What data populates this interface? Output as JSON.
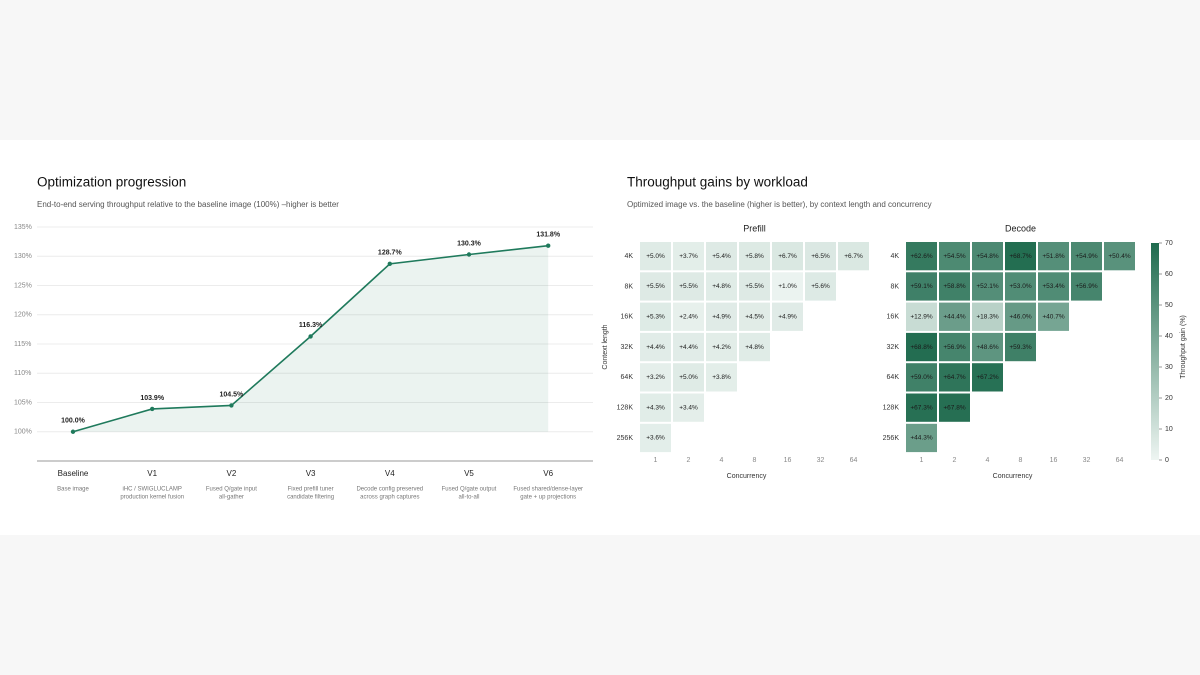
{
  "chart_data": [
    {
      "type": "line",
      "title": "Optimization progression",
      "subtitle": "End-to-end serving throughput relative to the baseline image (100%) –higher is better",
      "categories": [
        "Baseline",
        "V1",
        "V2",
        "V3",
        "V4",
        "V5",
        "V6"
      ],
      "descriptions": [
        [
          "Base image"
        ],
        [
          "iHC / SWIGLUCLAMP",
          "production kernel fusion"
        ],
        [
          "Fused Q/gate input",
          "all-gather"
        ],
        [
          "Fixed prefill tuner",
          "candidate filtering"
        ],
        [
          "Decode config preserved",
          "across graph captures"
        ],
        [
          "Fused Q/gate output",
          "all-to-all"
        ],
        [
          "Fused shared/dense-layer",
          "gate + up projections"
        ]
      ],
      "values": [
        100.0,
        103.9,
        104.5,
        116.3,
        128.7,
        130.3,
        131.8
      ],
      "value_labels": [
        "100.0%",
        "103.9%",
        "104.5%",
        "116.3%",
        "128.7%",
        "130.3%",
        "131.8%"
      ],
      "color": "#1f7a5c",
      "ylim": [
        95,
        135
      ],
      "yticks": [
        {
          "value": 100,
          "label": "100%"
        },
        {
          "value": 105,
          "label": "105%"
        },
        {
          "value": 110,
          "label": "110%"
        },
        {
          "value": 115,
          "label": "115%"
        },
        {
          "value": 120,
          "label": "120%"
        },
        {
          "value": 125,
          "label": "125%"
        },
        {
          "value": 130,
          "label": "130%"
        },
        {
          "value": 135,
          "label": "135%"
        }
      ],
      "grid": true
    },
    {
      "type": "heatmap",
      "title": "Throughput gains by workload",
      "subtitle": "Optimized image vs. the baseline (higher is better), by context length and concurrency",
      "x": [
        "1",
        "2",
        "4",
        "8",
        "16",
        "32",
        "64"
      ],
      "y": [
        "4K",
        "8K",
        "16K",
        "32K",
        "64K",
        "128K",
        "256K"
      ],
      "xlabel": "Concurrency",
      "ylabel": "Context length",
      "cmap": [
        "#eef5f2",
        "#1f6b4e"
      ],
      "colorbar": {
        "label": "Throughput gain (%)",
        "lim": [
          0,
          70
        ],
        "ticks": [
          0,
          10,
          20,
          30,
          40,
          50,
          60,
          70
        ]
      },
      "panels": [
        {
          "title": "Prefill",
          "values": [
            [
              5.0,
              3.7,
              5.4,
              5.8,
              6.7,
              6.5,
              6.7
            ],
            [
              5.5,
              5.5,
              4.8,
              5.5,
              1.0,
              5.6,
              null
            ],
            [
              5.3,
              2.4,
              4.9,
              4.5,
              4.9,
              null,
              null
            ],
            [
              4.4,
              4.4,
              4.2,
              4.8,
              null,
              null,
              null
            ],
            [
              3.2,
              5.0,
              3.8,
              null,
              null,
              null,
              null
            ],
            [
              4.3,
              3.4,
              null,
              null,
              null,
              null,
              null
            ],
            [
              3.6,
              null,
              null,
              null,
              null,
              null,
              null
            ]
          ],
          "value_labels": [
            [
              "+5.0%",
              "+3.7%",
              "+5.4%",
              "+5.8%",
              "+6.7%",
              "+6.5%",
              "+6.7%"
            ],
            [
              "+5.5%",
              "+5.5%",
              "+4.8%",
              "+5.5%",
              "+1.0%",
              "+5.6%",
              null
            ],
            [
              "+5.3%",
              "+2.4%",
              "+4.9%",
              "+4.5%",
              "+4.9%",
              null,
              null
            ],
            [
              "+4.4%",
              "+4.4%",
              "+4.2%",
              "+4.8%",
              null,
              null,
              null
            ],
            [
              "+3.2%",
              "+5.0%",
              "+3.8%",
              null,
              null,
              null,
              null
            ],
            [
              "+4.3%",
              "+3.4%",
              null,
              null,
              null,
              null,
              null
            ],
            [
              "+3.6%",
              null,
              null,
              null,
              null,
              null,
              null
            ]
          ]
        },
        {
          "title": "Decode",
          "values": [
            [
              62.6,
              54.5,
              54.8,
              68.7,
              51.8,
              54.9,
              50.4
            ],
            [
              59.1,
              58.8,
              52.1,
              53.0,
              53.4,
              56.9,
              null
            ],
            [
              12.9,
              44.4,
              18.3,
              46.0,
              40.7,
              null,
              null
            ],
            [
              68.8,
              56.9,
              48.6,
              59.3,
              null,
              null,
              null
            ],
            [
              59.0,
              64.7,
              67.2,
              null,
              null,
              null,
              null
            ],
            [
              67.3,
              67.8,
              null,
              null,
              null,
              null,
              null
            ],
            [
              44.3,
              null,
              null,
              null,
              null,
              null,
              null
            ]
          ],
          "value_labels": [
            [
              "+62.6%",
              "+54.5%",
              "+54.8%",
              "+68.7%",
              "+51.8%",
              "+54.9%",
              "+50.4%"
            ],
            [
              "+59.1%",
              "+58.8%",
              "+52.1%",
              "+53.0%",
              "+53.4%",
              "+56.9%",
              null
            ],
            [
              "+12.9%",
              "+44.4%",
              "+18.3%",
              "+46.0%",
              "+40.7%",
              null,
              null
            ],
            [
              "+68.8%",
              "+56.9%",
              "+48.6%",
              "+59.3%",
              null,
              null,
              null
            ],
            [
              "+59.0%",
              "+64.7%",
              "+67.2%",
              null,
              null,
              null,
              null
            ],
            [
              "+67.3%",
              "+67.8%",
              null,
              null,
              null,
              null,
              null
            ],
            [
              "+44.3%",
              null,
              null,
              null,
              null,
              null,
              null
            ]
          ]
        }
      ]
    }
  ]
}
